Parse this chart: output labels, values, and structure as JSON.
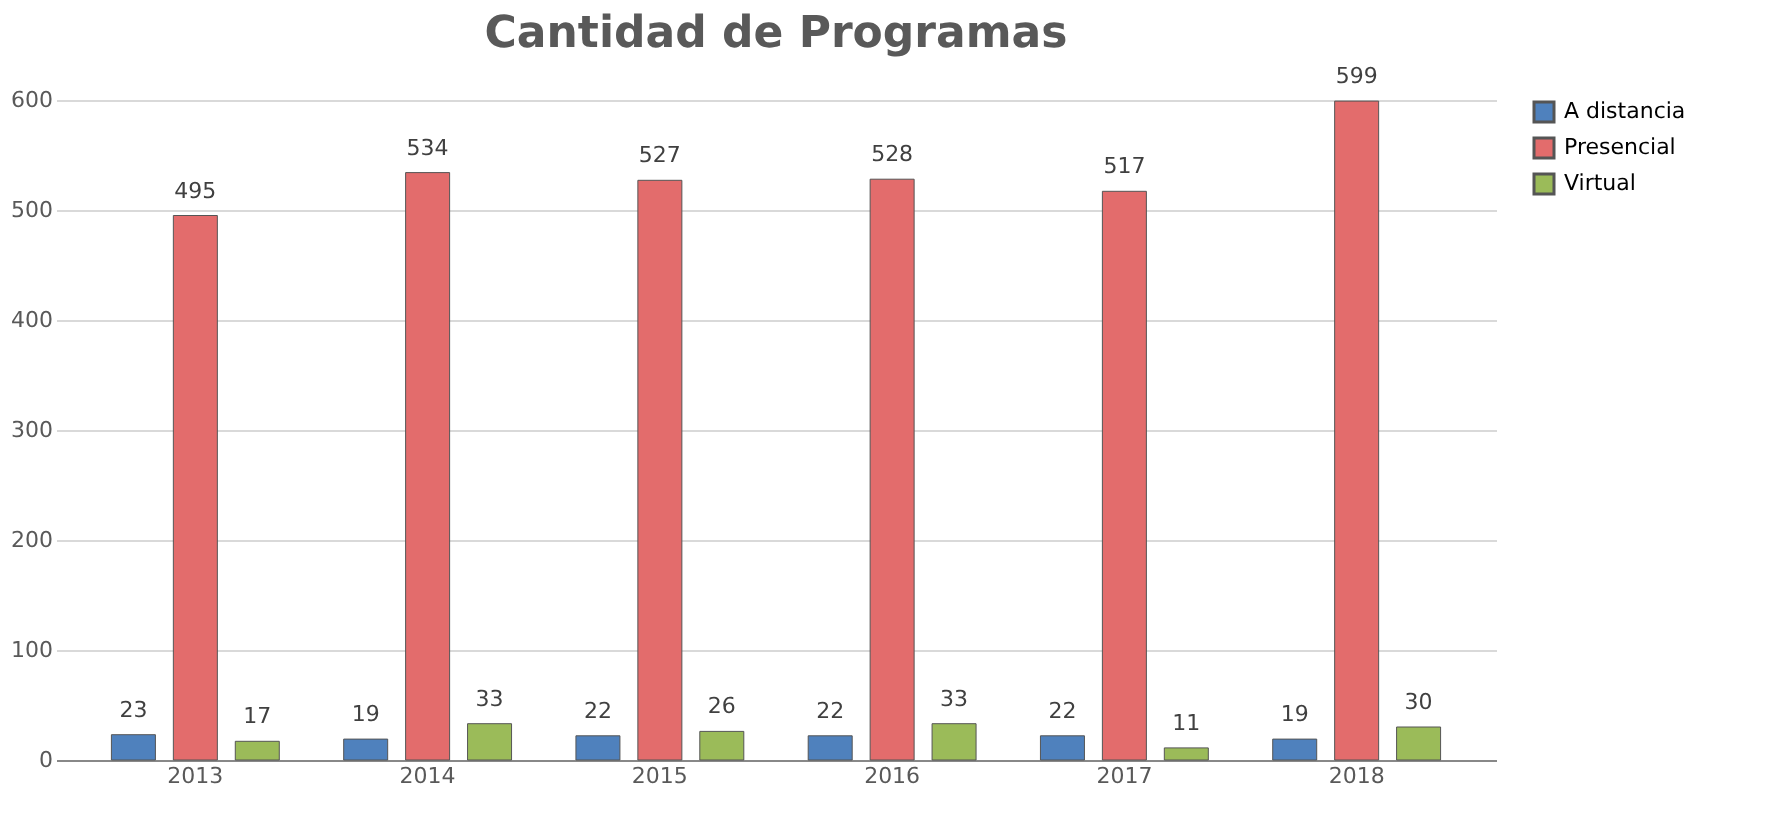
{
  "chart_data": {
    "type": "bar",
    "title": "Cantidad de Programas",
    "categories": [
      "2013",
      "2014",
      "2015",
      "2016",
      "2017",
      "2018"
    ],
    "series": [
      {
        "name": "A distancia",
        "color": "#4f81bd",
        "values": [
          23,
          19,
          22,
          22,
          22,
          19
        ]
      },
      {
        "name": "Presencial",
        "color": "#e36c6c",
        "values": [
          495,
          534,
          527,
          528,
          517,
          599
        ]
      },
      {
        "name": "Virtual",
        "color": "#9bbb59",
        "values": [
          17,
          33,
          26,
          33,
          11,
          30
        ]
      }
    ],
    "ylim": [
      0,
      600
    ],
    "yticks": [
      0,
      100,
      200,
      300,
      400,
      500,
      600
    ],
    "grid": "y",
    "legend": "right",
    "data_labels": true
  }
}
